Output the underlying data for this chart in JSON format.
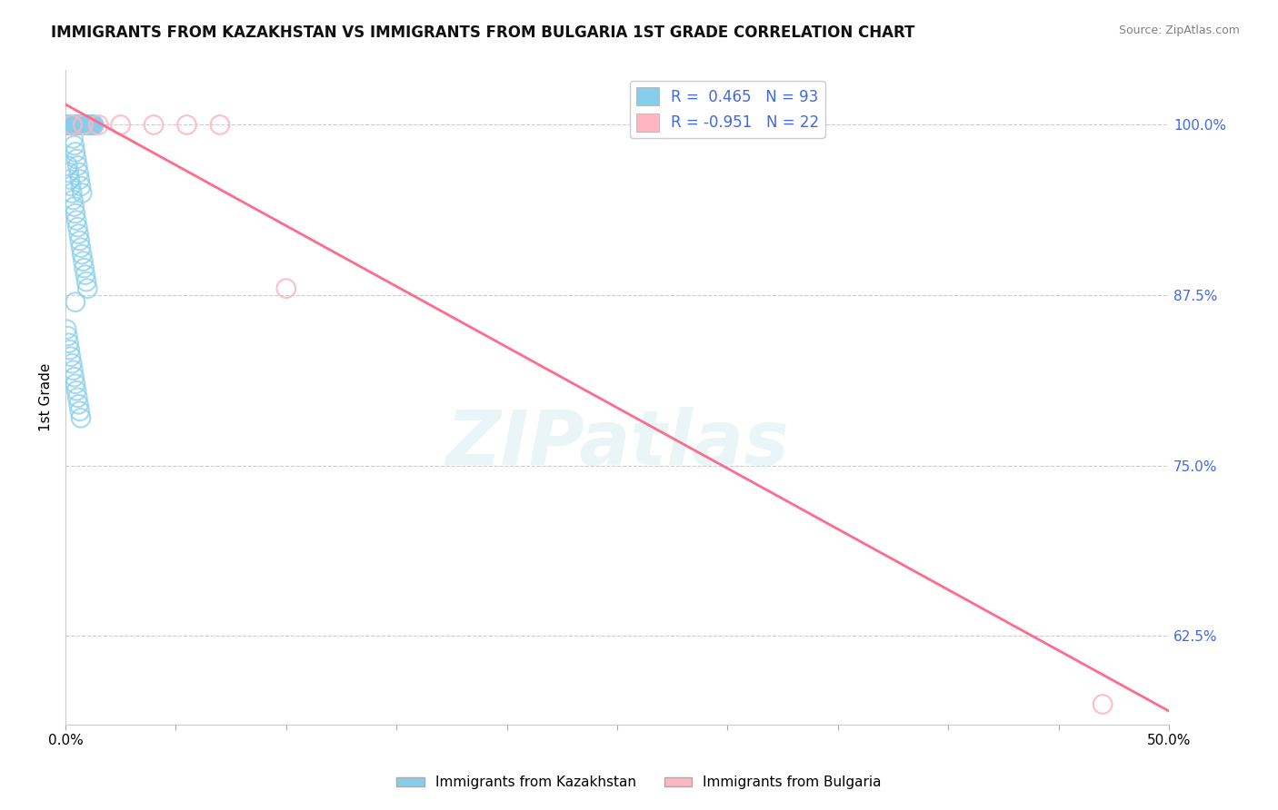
{
  "title": "IMMIGRANTS FROM KAZAKHSTAN VS IMMIGRANTS FROM BULGARIA 1ST GRADE CORRELATION CHART",
  "source": "Source: ZipAtlas.com",
  "ylabel": "1st Grade",
  "x_tick_labels": [
    "0.0%",
    "",
    "",
    "",
    "",
    "",
    "",
    "",
    "",
    "",
    "50.0%"
  ],
  "y_tick_labels": [
    "62.5%",
    "75.0%",
    "87.5%",
    "100.0%"
  ],
  "x_lim": [
    0.0,
    50.0
  ],
  "y_lim": [
    56.0,
    104.0
  ],
  "y_ticks": [
    62.5,
    75.0,
    87.5,
    100.0
  ],
  "x_ticks": [
    0.0,
    5.0,
    10.0,
    15.0,
    20.0,
    25.0,
    30.0,
    35.0,
    40.0,
    45.0,
    50.0
  ],
  "legend_label1": "Immigrants from Kazakhstan",
  "legend_label2": "Immigrants from Bulgaria",
  "R1": 0.465,
  "N1": 93,
  "R2": -0.951,
  "N2": 22,
  "color1": "#87CEEB",
  "color2": "#FFB6C1",
  "color_text": "#4169E1",
  "regression_color": "#FF6B8A",
  "background_color": "#FFFFFF",
  "watermark": "ZIPatlas",
  "blue_scatter_x": [
    0.05,
    0.08,
    0.1,
    0.12,
    0.15,
    0.18,
    0.2,
    0.22,
    0.25,
    0.28,
    0.3,
    0.32,
    0.35,
    0.38,
    0.4,
    0.42,
    0.45,
    0.48,
    0.5,
    0.52,
    0.55,
    0.58,
    0.6,
    0.62,
    0.65,
    0.68,
    0.7,
    0.72,
    0.75,
    0.78,
    0.8,
    0.82,
    0.85,
    0.88,
    0.9,
    0.92,
    0.95,
    0.98,
    1.0,
    1.02,
    1.05,
    1.08,
    1.1,
    1.12,
    1.15,
    1.18,
    1.2,
    1.25,
    1.3,
    0.1,
    0.15,
    0.2,
    0.25,
    0.3,
    0.35,
    0.4,
    0.45,
    0.5,
    0.55,
    0.6,
    0.65,
    0.7,
    0.75,
    0.8,
    0.85,
    0.9,
    0.95,
    1.0,
    0.05,
    0.1,
    0.15,
    0.2,
    0.25,
    0.3,
    0.35,
    0.4,
    0.45,
    0.5,
    0.55,
    0.6,
    0.65,
    0.7,
    0.35,
    0.4,
    0.45,
    0.5,
    0.55,
    0.6,
    0.65,
    0.7,
    0.75,
    0.45
  ],
  "blue_scatter_y": [
    100.0,
    100.0,
    100.0,
    100.0,
    100.0,
    100.0,
    100.0,
    100.0,
    100.0,
    100.0,
    100.0,
    100.0,
    100.0,
    100.0,
    100.0,
    100.0,
    100.0,
    100.0,
    100.0,
    100.0,
    100.0,
    100.0,
    100.0,
    100.0,
    100.0,
    100.0,
    100.0,
    100.0,
    100.0,
    100.0,
    100.0,
    100.0,
    100.0,
    100.0,
    100.0,
    100.0,
    100.0,
    100.0,
    100.0,
    100.0,
    100.0,
    100.0,
    100.0,
    100.0,
    100.0,
    100.0,
    100.0,
    100.0,
    100.0,
    97.0,
    96.5,
    96.0,
    95.5,
    95.0,
    94.5,
    94.0,
    93.5,
    93.0,
    92.5,
    92.0,
    91.5,
    91.0,
    90.5,
    90.0,
    89.5,
    89.0,
    88.5,
    88.0,
    85.0,
    84.5,
    84.0,
    83.5,
    83.0,
    82.5,
    82.0,
    81.5,
    81.0,
    80.5,
    80.0,
    79.5,
    79.0,
    78.5,
    99.0,
    98.5,
    98.0,
    97.5,
    97.0,
    96.5,
    96.0,
    95.5,
    95.0,
    87.0
  ],
  "pink_scatter_x": [
    0.3,
    0.8,
    1.5,
    2.5,
    4.0,
    5.5,
    7.0,
    10.0,
    47.0
  ],
  "pink_scatter_y": [
    100.0,
    100.0,
    100.0,
    100.0,
    100.0,
    100.0,
    100.0,
    88.0,
    57.5
  ],
  "pink_line_x": [
    0.0,
    50.0
  ],
  "pink_line_y": [
    101.5,
    57.0
  ],
  "grid_color": "#CCCCCC"
}
